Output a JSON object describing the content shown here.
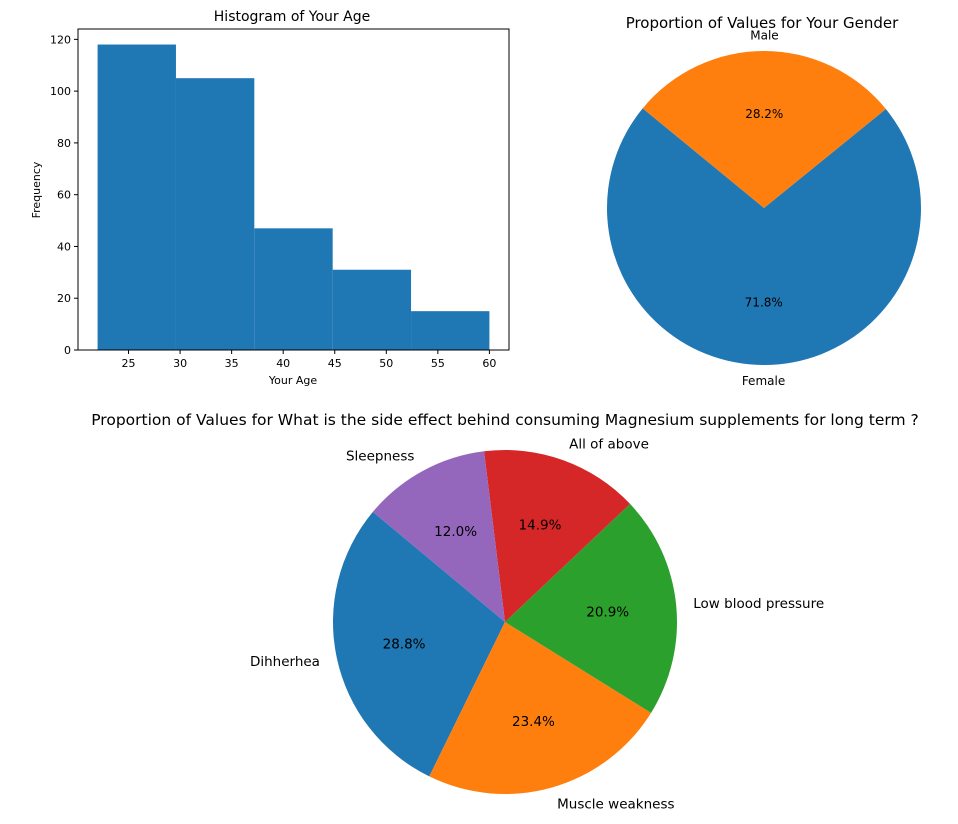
{
  "chart_data": [
    {
      "type": "bar",
      "subtype": "histogram",
      "title": "Histogram of Your Age",
      "xlabel": "Your Age",
      "ylabel": "Frequency",
      "bins": [
        {
          "start": 22,
          "end": 29.6,
          "count": 118
        },
        {
          "start": 29.6,
          "end": 37.2,
          "count": 105
        },
        {
          "start": 37.2,
          "end": 44.8,
          "count": 47
        },
        {
          "start": 44.8,
          "end": 52.4,
          "count": 31
        },
        {
          "start": 52.4,
          "end": 60,
          "count": 15
        }
      ],
      "xlim": [
        20.1,
        61.9
      ],
      "ylim": [
        0,
        124
      ],
      "xticks": [
        "25",
        "30",
        "35",
        "40",
        "45",
        "50",
        "55",
        "60"
      ],
      "yticks": [
        "0",
        "20",
        "40",
        "60",
        "80",
        "100",
        "120"
      ],
      "color": "#1f77b4",
      "grid": false
    },
    {
      "type": "pie",
      "title": "Proportion of Values for Your Gender",
      "slices": [
        {
          "label": "Female",
          "value": 71.8,
          "pct_label": "71.8%",
          "color": "#1f77b4"
        },
        {
          "label": "Male",
          "value": 28.2,
          "pct_label": "28.2%",
          "color": "#ff7f0e"
        }
      ]
    },
    {
      "type": "pie",
      "title": "Proportion of Values for What is the side effect behind consuming Magnesium supplements for long term ?",
      "slices": [
        {
          "label": "Dihherhea",
          "value": 28.8,
          "pct_label": "28.8%",
          "color": "#1f77b4"
        },
        {
          "label": "Muscle weakness",
          "value": 23.4,
          "pct_label": "23.4%",
          "color": "#ff7f0e"
        },
        {
          "label": "Low blood pressure",
          "value": 20.9,
          "pct_label": "20.9%",
          "color": "#2ca02c"
        },
        {
          "label": "All of above",
          "value": 14.9,
          "pct_label": "14.9%",
          "color": "#d62728"
        },
        {
          "label": "Sleepness",
          "value": 12.0,
          "pct_label": "12.0%",
          "color": "#9467bd"
        }
      ]
    }
  ]
}
